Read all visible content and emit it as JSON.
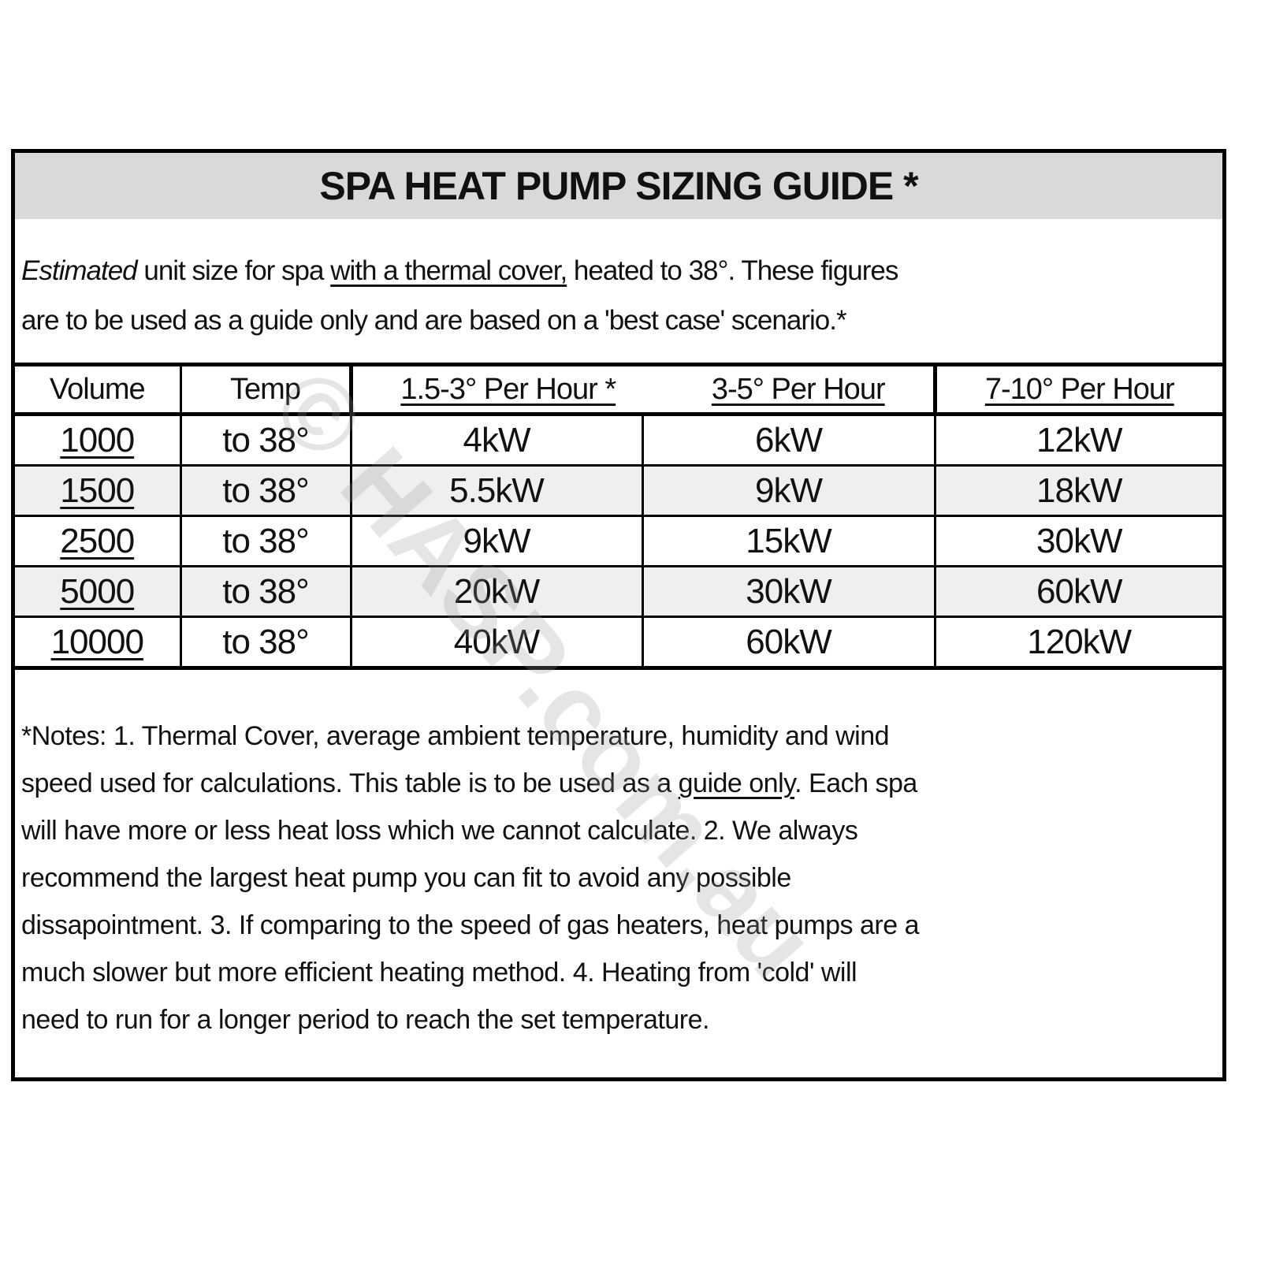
{
  "title": "SPA HEAT PUMP SIZING GUIDE *",
  "intro": {
    "italic": "Estimated",
    "part1": " unit size for spa ",
    "underlined": "with a thermal cover,",
    "part2": " heated to 38°. These figures",
    "line2": "are to be used as a guide only and are based on a 'best case' scenario.*"
  },
  "table": {
    "headers": [
      "Volume",
      "Temp",
      "1.5-3° Per Hour *",
      "3-5° Per Hour",
      "7-10° Per Hour"
    ],
    "rows": [
      [
        "1000",
        "to 38°",
        "4kW",
        "6kW",
        "12kW"
      ],
      [
        "1500",
        "to 38°",
        "5.5kW",
        "9kW",
        "18kW"
      ],
      [
        "2500",
        "to 38°",
        "9kW",
        "15kW",
        "30kW"
      ],
      [
        "5000",
        "to 38°",
        "20kW",
        "30kW",
        "60kW"
      ],
      [
        "10000",
        "to 38°",
        "40kW",
        "60kW",
        "120kW"
      ]
    ]
  },
  "notes": {
    "line1": "*Notes: 1. Thermal Cover, average ambient temperature, humidity and wind",
    "line2a": "speed used for calculations. This table is to be used as a ",
    "line2u": "guide only",
    "line2b": ". Each spa",
    "line3": "will have more or less heat loss which we cannot calculate. 2. We always",
    "line4": "recommend the largest heat pump you can fit to avoid any possible",
    "line5": "dissapointment. 3. If comparing to the speed of gas heaters, heat pumps are a",
    "line6": "much slower but more efficient heating method. 4. Heating from 'cold' will",
    "line7": "need to run for a longer period to reach the set temperature."
  },
  "watermark": "© HASP.com.au",
  "colors": {
    "title_band": "#d9d9d9",
    "alt_row": "#efefef"
  }
}
